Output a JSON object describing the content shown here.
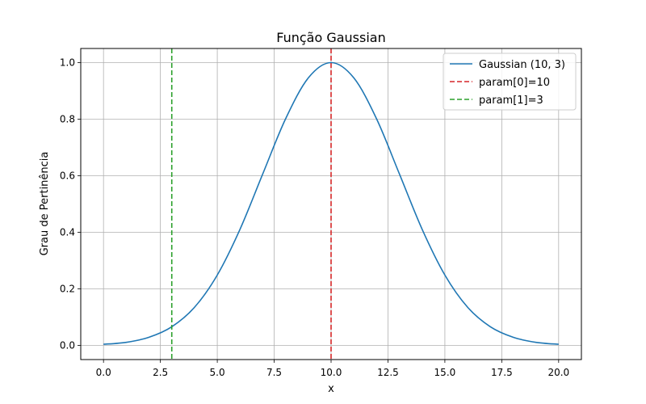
{
  "chart_data": {
    "type": "line",
    "title": "Função Gaussian",
    "xlabel": "x",
    "ylabel": "Grau de Pertinência",
    "xlim": [
      -1.0,
      21.0
    ],
    "ylim": [
      -0.05,
      1.05
    ],
    "xticks": [
      0.0,
      2.5,
      5.0,
      7.5,
      10.0,
      12.5,
      15.0,
      17.5,
      20.0
    ],
    "xtick_labels": [
      "0.0",
      "2.5",
      "5.0",
      "7.5",
      "10.0",
      "12.5",
      "15.0",
      "17.5",
      "20.0"
    ],
    "yticks": [
      0.0,
      0.2,
      0.4,
      0.6,
      0.8,
      1.0
    ],
    "ytick_labels": [
      "0.0",
      "0.2",
      "0.4",
      "0.6",
      "0.8",
      "1.0"
    ],
    "grid": true,
    "legend_position": "top-right",
    "series": [
      {
        "name": "Gaussian (10, 3)",
        "color": "#1f77b4",
        "style": "solid",
        "x": [
          0,
          1,
          2,
          3,
          4,
          5,
          6,
          7,
          8,
          9,
          10,
          11,
          12,
          13,
          14,
          15,
          16,
          17,
          18,
          19,
          20
        ],
        "y": [
          0.004,
          0.011,
          0.029,
          0.066,
          0.135,
          0.249,
          0.411,
          0.607,
          0.801,
          0.946,
          1.0,
          0.946,
          0.801,
          0.607,
          0.411,
          0.249,
          0.135,
          0.066,
          0.029,
          0.011,
          0.004
        ]
      }
    ],
    "vlines": [
      {
        "name": "param[0]=10",
        "x": 10,
        "color": "#d62728",
        "style": "dashed"
      },
      {
        "name": "param[1]=3",
        "x": 3,
        "color": "#2ca02c",
        "style": "dashed"
      }
    ]
  }
}
